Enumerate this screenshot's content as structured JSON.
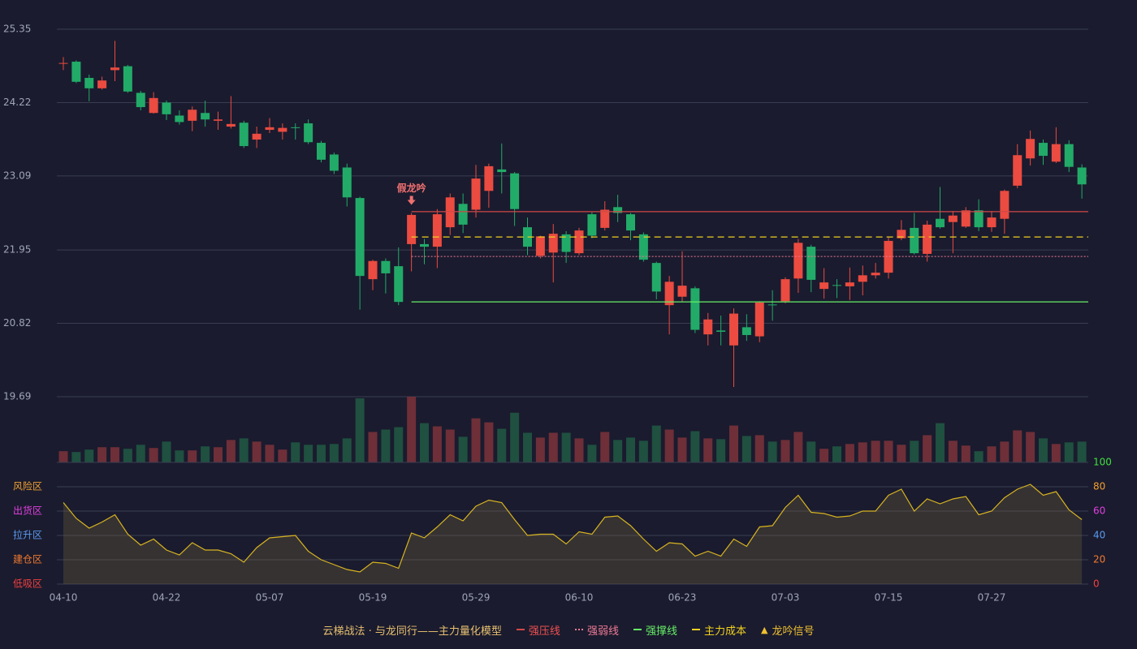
{
  "chart_data": {
    "type": "candlestick",
    "categories": [
      "04-10",
      null,
      null,
      null,
      null,
      null,
      null,
      null,
      "04-22",
      null,
      null,
      null,
      null,
      null,
      null,
      null,
      "05-07",
      null,
      null,
      null,
      null,
      null,
      null,
      null,
      "05-19",
      null,
      null,
      null,
      null,
      null,
      null,
      null,
      "05-29",
      null,
      null,
      null,
      null,
      null,
      null,
      null,
      "06-10",
      null,
      null,
      null,
      null,
      null,
      null,
      null,
      "06-23",
      null,
      null,
      null,
      null,
      null,
      null,
      null,
      "07-03",
      null,
      null,
      null,
      null,
      null,
      null,
      null,
      "07-15",
      null,
      null,
      null,
      null,
      null,
      null,
      null,
      "07-27",
      null,
      null,
      null,
      null,
      null,
      null,
      null
    ],
    "open": [
      24.82,
      24.85,
      24.6,
      24.44,
      24.72,
      24.78,
      24.37,
      24.06,
      24.22,
      24.02,
      23.94,
      24.06,
      23.94,
      23.85,
      23.91,
      23.65,
      23.8,
      23.77,
      23.84,
      23.9,
      23.6,
      23.42,
      23.22,
      22.75,
      21.5,
      21.78,
      21.7,
      22.04,
      22.04,
      22.0,
      22.3,
      22.66,
      22.57,
      22.86,
      23.19,
      23.13,
      22.3,
      21.86,
      21.91,
      22.19,
      21.9,
      22.5,
      22.29,
      22.61,
      22.5,
      22.19,
      21.75,
      21.1,
      21.23,
      21.36,
      20.65,
      20.71,
      20.48,
      20.76,
      20.62,
      21.11,
      21.16,
      21.51,
      22.0,
      21.35,
      21.41,
      21.39,
      21.46,
      21.56,
      21.6,
      22.13,
      22.29,
      21.89,
      22.43,
      22.38,
      22.31,
      22.56,
      22.3,
      22.43,
      22.94,
      23.36,
      23.6,
      23.31,
      23.58,
      23.22
    ],
    "high": [
      24.92,
      24.87,
      24.65,
      24.62,
      25.17,
      24.8,
      24.4,
      24.38,
      24.25,
      24.1,
      24.16,
      24.25,
      24.08,
      24.32,
      23.94,
      23.85,
      23.98,
      23.9,
      23.9,
      23.96,
      23.63,
      23.45,
      23.28,
      22.77,
      21.8,
      21.82,
      21.99,
      22.52,
      22.12,
      22.58,
      22.82,
      22.82,
      23.26,
      23.28,
      23.59,
      23.15,
      22.45,
      22.17,
      22.35,
      22.24,
      22.29,
      22.53,
      22.7,
      22.8,
      22.52,
      22.22,
      21.77,
      21.55,
      21.93,
      21.39,
      20.98,
      20.94,
      21.05,
      20.96,
      21.16,
      21.33,
      21.53,
      22.12,
      22.03,
      21.67,
      21.5,
      21.68,
      21.71,
      21.75,
      22.14,
      22.41,
      22.52,
      22.4,
      22.92,
      22.55,
      22.61,
      22.73,
      22.55,
      22.88,
      23.58,
      23.79,
      23.65,
      23.84,
      23.64,
      23.27
    ],
    "low": [
      24.72,
      24.52,
      24.24,
      24.42,
      24.55,
      24.37,
      24.1,
      24.05,
      23.95,
      23.88,
      23.78,
      23.85,
      23.8,
      23.82,
      23.52,
      23.52,
      23.75,
      23.65,
      23.65,
      23.58,
      23.3,
      23.12,
      22.62,
      21.03,
      21.33,
      21.28,
      21.1,
      21.62,
      21.73,
      21.67,
      22.18,
      22.21,
      22.45,
      22.6,
      22.82,
      22.32,
      21.87,
      21.82,
      21.45,
      21.75,
      21.87,
      22.13,
      22.25,
      22.38,
      22.1,
      21.77,
      21.19,
      20.65,
      21.15,
      20.67,
      20.48,
      20.48,
      19.84,
      20.55,
      20.53,
      20.86,
      21.13,
      21.29,
      21.3,
      21.2,
      21.21,
      21.18,
      21.25,
      21.51,
      21.51,
      22.1,
      21.88,
      21.77,
      22.28,
      21.9,
      22.29,
      22.24,
      22.23,
      22.2,
      22.9,
      23.25,
      23.26,
      23.29,
      23.15,
      22.74
    ],
    "close": [
      24.83,
      24.54,
      24.44,
      24.56,
      24.76,
      24.39,
      24.15,
      24.29,
      24.04,
      23.92,
      24.11,
      23.96,
      23.96,
      23.89,
      23.55,
      23.74,
      23.84,
      23.83,
      23.83,
      23.61,
      23.34,
      23.17,
      22.76,
      21.55,
      21.78,
      21.59,
      21.15,
      22.49,
      22.0,
      22.5,
      22.76,
      22.34,
      23.05,
      23.24,
      23.15,
      22.58,
      22.0,
      22.16,
      22.2,
      21.92,
      22.25,
      22.17,
      22.57,
      22.52,
      22.25,
      21.8,
      21.31,
      21.46,
      21.4,
      20.72,
      20.88,
      20.69,
      20.97,
      20.64,
      21.14,
      21.1,
      21.5,
      22.06,
      21.49,
      21.45,
      21.4,
      21.45,
      21.56,
      21.6,
      22.09,
      22.26,
      21.9,
      22.34,
      22.3,
      22.48,
      22.56,
      22.3,
      22.45,
      22.86,
      23.41,
      23.66,
      23.4,
      23.58,
      23.23,
      22.96
    ],
    "volume": [
      14,
      13,
      16,
      19,
      19,
      17,
      22,
      18,
      26,
      15,
      15,
      20,
      19,
      28,
      30,
      26,
      22,
      16,
      25,
      22,
      22,
      23,
      30,
      80,
      38,
      41,
      44,
      82,
      49,
      45,
      41,
      32,
      55,
      50,
      42,
      62,
      37,
      31,
      37,
      37,
      30,
      22,
      38,
      28,
      31,
      27,
      46,
      41,
      31,
      39,
      30,
      29,
      46,
      33,
      34,
      26,
      28,
      38,
      26,
      17,
      20,
      23,
      25,
      27,
      27,
      22,
      27,
      34,
      49,
      27,
      21,
      14,
      20,
      26,
      40,
      38,
      30,
      23,
      25,
      26
    ],
    "ylim": [
      19.69,
      25.35
    ],
    "yticks": [
      19.69,
      20.82,
      21.95,
      23.09,
      24.22,
      25.35
    ],
    "up_color": "#eb4b40",
    "down_color": "#22ab68",
    "lines": [
      {
        "name": "强压线",
        "value": 22.54,
        "color": "#d04848",
        "style": "solid"
      },
      {
        "name": "强弱线",
        "value": 21.85,
        "color": "#f07a96",
        "style": "dotted"
      },
      {
        "name": "强撑线",
        "value": 21.15,
        "color": "#66ee66",
        "style": "solid"
      },
      {
        "name": "主力成本",
        "value": 22.15,
        "color": "#f0d020",
        "style": "dashed"
      }
    ],
    "annotation": {
      "text": "假龙吟",
      "index": 27
    },
    "legend_title": "云梯战法 · 与龙同行——主力量化模型",
    "signal_legend": "龙吟信号",
    "indicator": {
      "values": [
        67,
        54,
        46,
        51,
        57,
        41,
        32,
        37,
        28,
        24,
        34,
        28,
        28,
        25,
        18,
        30,
        38,
        39,
        40,
        27,
        20,
        16,
        12,
        10,
        18,
        17,
        13,
        42,
        38,
        47,
        57,
        52,
        64,
        69,
        67,
        53,
        40,
        41,
        41,
        33,
        43,
        41,
        55,
        56,
        48,
        37,
        27,
        34,
        33,
        23,
        27,
        23,
        37,
        31,
        47,
        48,
        63,
        73,
        59,
        58,
        55,
        56,
        60,
        60,
        73,
        78,
        60,
        70,
        66,
        70,
        72,
        57,
        60,
        71,
        78,
        82,
        73,
        76,
        61,
        53
      ],
      "color": "#d8b420",
      "ylim": [
        0,
        100
      ],
      "yticks": [
        0,
        20,
        40,
        60,
        80,
        100
      ],
      "ytick_colors": [
        "#f04040",
        "#f07a30",
        "#5a9af0",
        "#e040e0",
        "#f0a030",
        "#40e040"
      ],
      "zones": [
        {
          "label": "风险区",
          "value": 80,
          "color": "#f0a030"
        },
        {
          "label": "出货区",
          "value": 60,
          "color": "#e040e0"
        },
        {
          "label": "拉升区",
          "value": 40,
          "color": "#5a9af0"
        },
        {
          "label": "建仓区",
          "value": 20,
          "color": "#f07a30"
        },
        {
          "label": "低吸区",
          "value": 0,
          "color": "#f04040"
        }
      ]
    }
  }
}
